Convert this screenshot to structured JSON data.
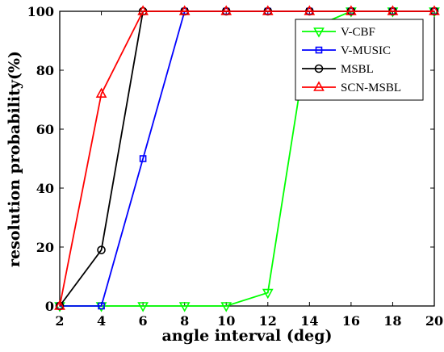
{
  "chart_data": {
    "type": "line",
    "title": "",
    "xlabel": "angle interval (deg)",
    "ylabel": "resolution probability(%)",
    "x": [
      2,
      4,
      6,
      8,
      10,
      12,
      14,
      16,
      18,
      20
    ],
    "xlim": [
      2,
      20
    ],
    "ylim": [
      0,
      100
    ],
    "xticks": [
      2,
      4,
      6,
      8,
      10,
      12,
      14,
      16,
      18,
      20
    ],
    "yticks": [
      0,
      20,
      40,
      60,
      80,
      100
    ],
    "grid": false,
    "legend_position": "top-right",
    "series": [
      {
        "name": "V-CBF",
        "color": "#00ff00",
        "marker": "triangle-down",
        "values": [
          0,
          0,
          0,
          0,
          0,
          4.5,
          94,
          100,
          100,
          100
        ]
      },
      {
        "name": "V-MUSIC",
        "color": "#0000ff",
        "marker": "square",
        "values": [
          0,
          0,
          50,
          100,
          100,
          100,
          100,
          100,
          100,
          100
        ]
      },
      {
        "name": "MSBL",
        "color": "#000000",
        "marker": "circle",
        "values": [
          0,
          19,
          100,
          100,
          100,
          100,
          100,
          100,
          100,
          100
        ]
      },
      {
        "name": "SCN-MSBL",
        "color": "#ff0000",
        "marker": "triangle-up",
        "values": [
          0,
          72,
          100,
          100,
          100,
          100,
          100,
          100,
          100,
          100
        ]
      }
    ]
  }
}
